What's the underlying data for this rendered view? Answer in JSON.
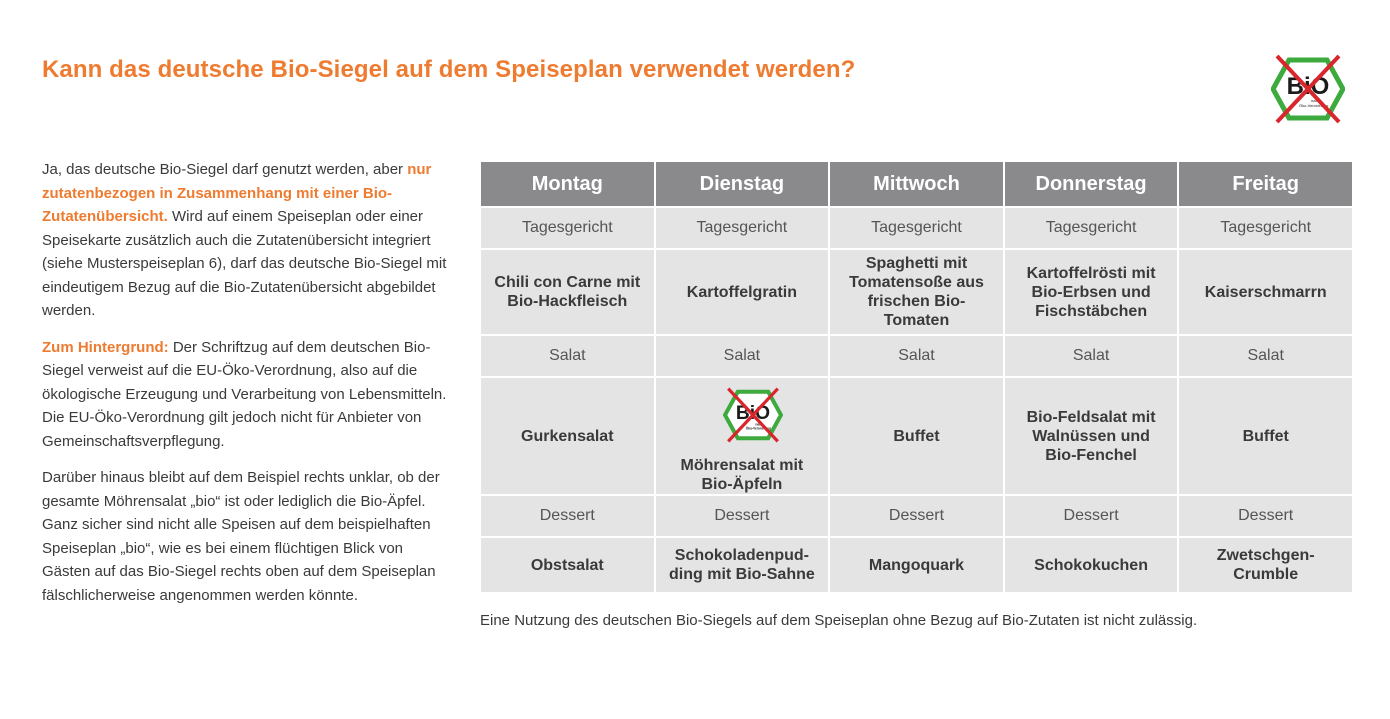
{
  "title": "Kann das deutsche Bio-Siegel auf dem Speiseplan verwendet werden?",
  "seal": {
    "main_text": "BiO",
    "sub_text": "nach EG-Öko-Verordnung"
  },
  "intro": {
    "p1_a": "Ja, das deutsche Bio-Siegel darf genutzt werden, aber ",
    "p1_hl": "nur zutatenbezogen in Zusammenhang mit einer Bio-Zutatenübersicht.",
    "p1_b": " Wird auf einem Speiseplan oder einer Speisekarte zusätzlich auch die Zutatenübersicht integriert (siehe Musterspeise­plan 6), darf das deutsche Bio-Siegel mit eindeuti­gem Bezug auf die Bio-Zutatenübersicht abgebildet werden.",
    "p2_hl": "Zum Hintergrund:",
    "p2_b": " Der Schriftzug auf dem deutschen Bio-Siegel verweist auf die EU-Öko-Verordnung, also auf die ökologische Erzeugung und Verarbeitung von Lebensmitteln. Die EU-Öko-Verordnung gilt jedoch nicht für Anbieter von Gemeinschaftsverpflegung.",
    "p3": "Darüber hinaus bleibt auf dem Beispiel rechts unklar, ob der gesamte Möhrensalat „bio“ ist oder lediglich die Bio-Äpfel. Ganz sicher sind nicht alle Speisen auf dem beispielhaften Speiseplan „bio“, wie es bei einem flüchtigen Blick von Gästen auf das Bio-Siegel rechts oben auf dem Speiseplan fälsch­licherweise angenommen werden könnte."
  },
  "table": {
    "days": [
      "Montag",
      "Dienstag",
      "Mittwoch",
      "Donnerstag",
      "Freitag"
    ],
    "course1": "Tagesgericht",
    "dishes1": [
      "Chili con Carne mit Bio-Hackfleisch",
      "Kartoffelgratin",
      "Spaghetti mit Tomatensoße aus frischen Bio-Tomaten",
      "Kartoffelrösti mit Bio-Erbsen und Fischstäbchen",
      "Kaiserschmarrn"
    ],
    "course2": "Salat",
    "dishes2": [
      "Gurkensalat",
      "Möhrensalat mit Bio-Äpfeln",
      "Buffet",
      "Bio-Feldsalat mit Walnüssen und Bio-Fenchel",
      "Buffet"
    ],
    "course3": "Dessert",
    "dishes3": [
      "Obstsalat",
      "Schokoladenpud­ding mit Bio-Sahne",
      "Mangoquark",
      "Schokokuchen",
      "Zwetschgen-Crumble"
    ]
  },
  "footnote": "Eine Nutzung des deutschen Bio-Siegels auf dem Speiseplan ohne Bezug auf Bio-Zutaten ist nicht zulässig.",
  "colors": {
    "accent": "#ee7b30",
    "header_bg": "#8a8a8d",
    "cell_bg": "#e4e4e5",
    "seal_green": "#3daa3d",
    "cross_red": "#d9262c"
  }
}
